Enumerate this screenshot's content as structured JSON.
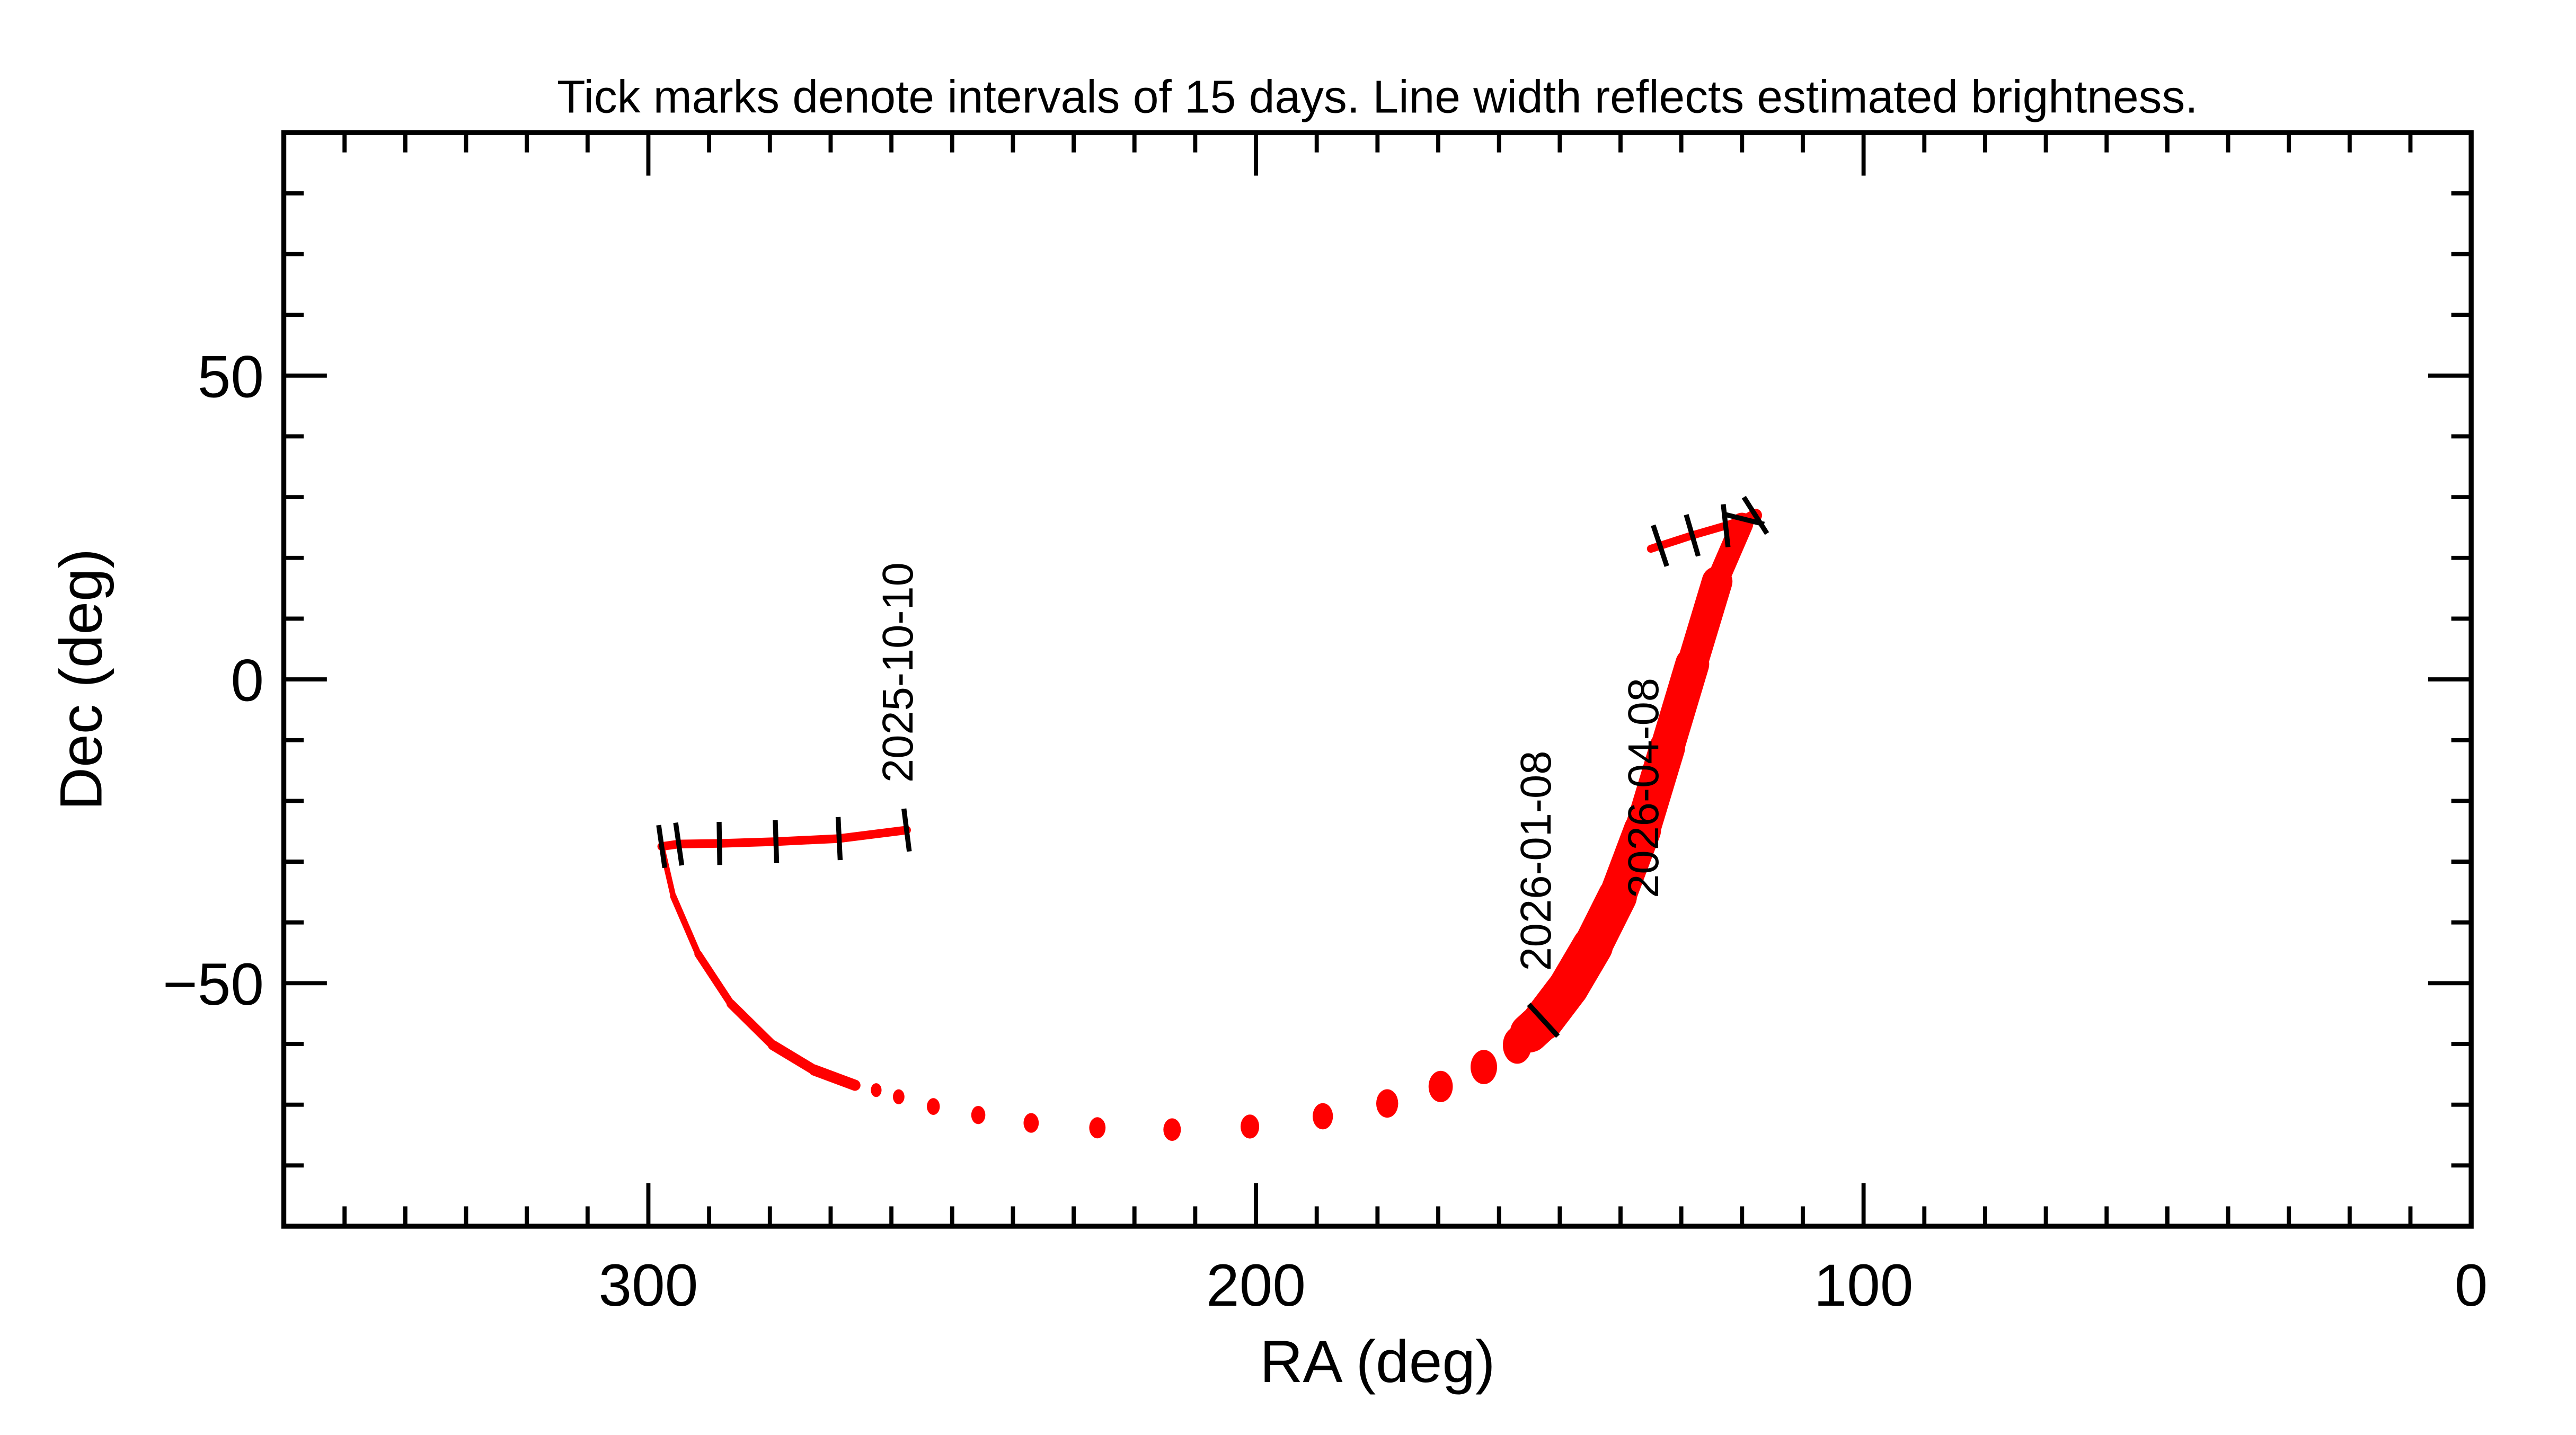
{
  "chart_data": {
    "type": "line",
    "title": "Tick marks denote intervals of 15 days.  Line width reflects estimated brightness.",
    "xlabel": "RA (deg)",
    "ylabel": "Dec (deg)",
    "xlim": [
      360,
      0
    ],
    "ylim": [
      -90,
      90
    ],
    "x_major_ticks": [
      300,
      200,
      100,
      0
    ],
    "x_tick_labels": [
      "300",
      "200",
      "100",
      "0"
    ],
    "y_major_ticks": [
      50,
      0,
      -50
    ],
    "y_tick_labels": [
      "50",
      "0",
      "−50"
    ],
    "minor_tick_step": 10,
    "grid": false,
    "line_color": "#ff0000",
    "tick_color": "#000000",
    "track_segments": [
      {
        "style": "line",
        "points": [
          [
            257.5,
            -24.8,
            2.6
          ],
          [
            268.6,
            -26.2,
            2.6
          ],
          [
            279,
            -26.7,
            2.6
          ],
          [
            288.3,
            -27,
            2.6
          ],
          [
            295,
            -27.1,
            2.6
          ],
          [
            297.8,
            -27.5,
            2.6
          ]
        ]
      },
      {
        "style": "line",
        "points": [
          [
            297.8,
            -27.5,
            1.6
          ],
          [
            295.9,
            -35.7,
            1.8
          ],
          [
            291.8,
            -45.2,
            2.1
          ],
          [
            286.4,
            -53.4,
            2.5
          ],
          [
            279.5,
            -60.2,
            2.9
          ],
          [
            272.7,
            -64.3,
            3.2
          ],
          [
            266,
            -66.8,
            3.5
          ]
        ]
      },
      {
        "style": "dots",
        "points": [
          [
            262.5,
            -67.6,
            3.8
          ],
          [
            258.8,
            -68.7,
            4.1
          ],
          [
            253.1,
            -70.3,
            4.6
          ],
          [
            245.7,
            -71.7,
            5.0
          ],
          [
            237,
            -73,
            5.4
          ],
          [
            226.1,
            -73.8,
            5.8
          ],
          [
            213.8,
            -74.1,
            6.2
          ],
          [
            201,
            -73.6,
            6.6
          ],
          [
            189,
            -71.9,
            7.2
          ],
          [
            178.4,
            -69.8,
            7.8
          ],
          [
            169.6,
            -67,
            8.6
          ],
          [
            162.5,
            -63.8,
            9.4
          ],
          [
            157,
            -60.2,
            10.2
          ]
        ]
      },
      {
        "style": "line",
        "points": [
          [
            155,
            -58.2,
            11.5
          ],
          [
            152.7,
            -56.1,
            12
          ],
          [
            148.6,
            -50.7,
            12.5
          ],
          [
            144.6,
            -43.9,
            12
          ],
          [
            140.5,
            -35.7,
            11.5
          ],
          [
            136.4,
            -24.8,
            11
          ],
          [
            132.3,
            -11.2,
            10.5
          ],
          [
            128.2,
            2.5,
            10
          ],
          [
            124.1,
            16.1,
            8.5
          ],
          [
            120,
            25.6,
            5
          ],
          [
            117.8,
            27,
            3
          ]
        ]
      },
      {
        "style": "line",
        "points": [
          [
            117.8,
            27,
            2.4
          ],
          [
            122.7,
            25.3,
            2.4
          ],
          [
            128.2,
            23.7,
            2.4
          ],
          [
            135,
            21.5,
            2.4
          ]
        ]
      }
    ],
    "interval_ticks": [
      [
        257.5,
        -24.8
      ],
      [
        268.6,
        -26.2
      ],
      [
        279,
        -26.7
      ],
      [
        288.3,
        -27
      ],
      [
        295,
        -27.1
      ],
      [
        297.8,
        -27.5
      ],
      [
        152.7,
        -56.1
      ],
      [
        117.8,
        27
      ],
      [
        119.8,
        26.4
      ],
      [
        122.7,
        25.3
      ],
      [
        128.2,
        23.7
      ],
      [
        133.5,
        22
      ]
    ],
    "date_labels": [
      {
        "text": "2025-10-10",
        "ra": 256.5,
        "dec": -17
      },
      {
        "text": "2026-01-08",
        "ra": 151.5,
        "dec": -48
      },
      {
        "text": "2026-04-08",
        "ra": 133.8,
        "dec": -36
      }
    ]
  }
}
